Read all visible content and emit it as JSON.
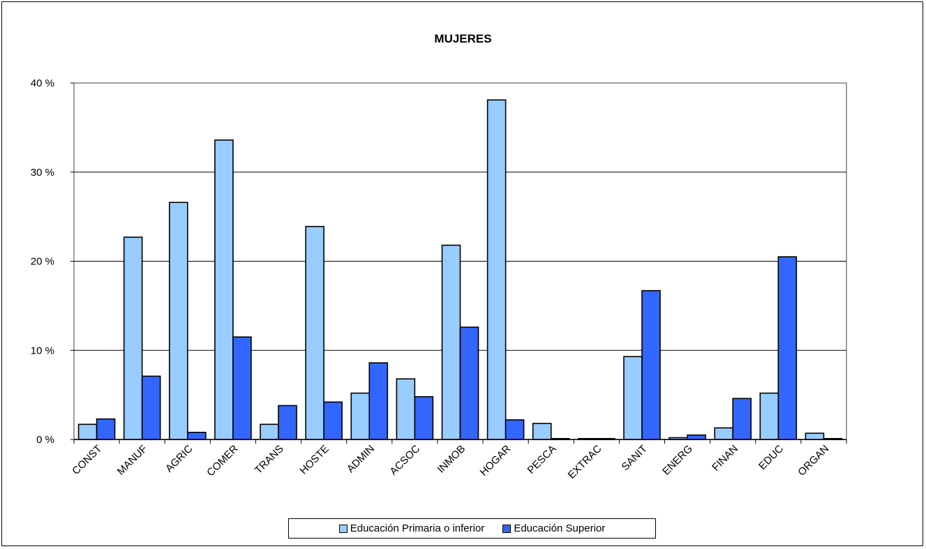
{
  "chart_data": {
    "type": "bar",
    "title": "MUJERES",
    "xlabel": "",
    "ylabel": "",
    "ylim": [
      0,
      40
    ],
    "yticks": [
      "0 %",
      "10 %",
      "20 %",
      "30 %",
      "40 %"
    ],
    "grid": true,
    "legend_position": "bottom",
    "categories": [
      "CONST",
      "MANUF",
      "AGRIC",
      "COMER",
      "TRANS",
      "HOSTE",
      "ADMIN",
      "ACSOC",
      "INMOB",
      "HOGAR",
      "PESCA",
      "EXTRAC",
      "SANIT",
      "ENERG",
      "FINAN",
      "EDUC",
      "ORGAN"
    ],
    "series": [
      {
        "name": "Educación Primaria o inferior",
        "color": "#99ccff",
        "values": [
          1.7,
          22.7,
          26.6,
          33.6,
          1.7,
          23.9,
          5.2,
          6.8,
          21.8,
          38.1,
          1.8,
          0.1,
          9.3,
          0.2,
          1.3,
          5.2,
          0.7
        ]
      },
      {
        "name": "Educación Superior",
        "color": "#3366ff",
        "values": [
          2.3,
          7.1,
          0.8,
          11.5,
          3.8,
          4.2,
          8.6,
          4.8,
          12.6,
          2.2,
          0.1,
          0.1,
          16.7,
          0.5,
          4.6,
          20.5,
          0.1
        ]
      }
    ]
  }
}
